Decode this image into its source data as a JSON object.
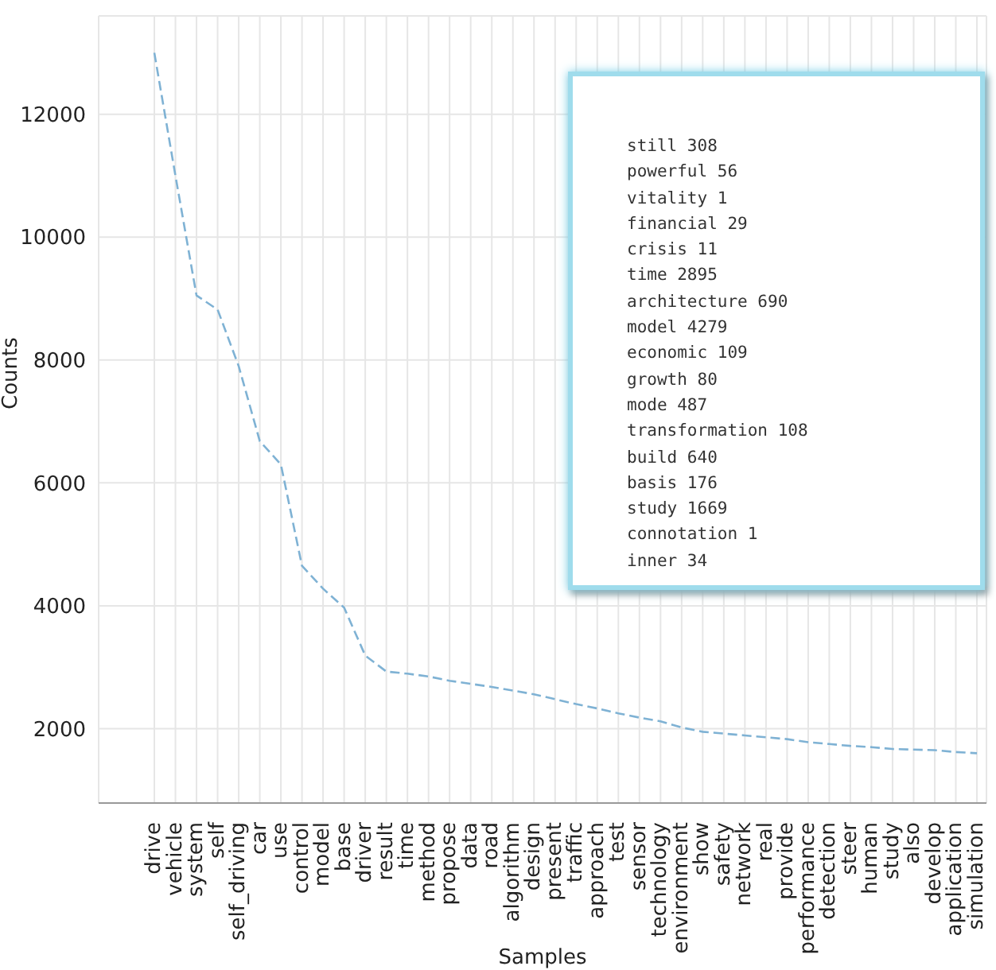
{
  "chart_data": {
    "type": "line",
    "xlabel": "Samples",
    "ylabel": "Counts",
    "categories": [
      "drive",
      "vehicle",
      "system",
      "self",
      "self_driving",
      "car",
      "use",
      "control",
      "model",
      "base",
      "driver",
      "result",
      "time",
      "method",
      "propose",
      "data",
      "road",
      "algorithm",
      "design",
      "present",
      "traffic",
      "approach",
      "test",
      "sensor",
      "technology",
      "environment",
      "show",
      "safety",
      "network",
      "real",
      "provide",
      "performance",
      "detection",
      "steer",
      "human",
      "study",
      "also",
      "develop",
      "application",
      "simulation"
    ],
    "series": [
      {
        "color": "#7fb2d4",
        "values": [
          13000,
          11000,
          9050,
          8820,
          7900,
          6680,
          6300,
          4650,
          4279,
          3970,
          3190,
          2930,
          2895,
          2850,
          2780,
          2730,
          2680,
          2620,
          2560,
          2480,
          2400,
          2330,
          2250,
          2180,
          2120,
          2020,
          1950,
          1920,
          1890,
          1860,
          1830,
          1780,
          1750,
          1720,
          1700,
          1669,
          1660,
          1650,
          1620,
          1600
        ]
      }
    ],
    "ylim": [
      790,
      13600
    ],
    "yticks": [
      2000,
      4000,
      6000,
      8000,
      10000,
      12000
    ],
    "grid": true,
    "line_style": "dashed",
    "marker": "none",
    "annotations": [
      "still 308",
      "powerful 56",
      "vitality 1",
      "financial 29",
      "crisis 11",
      "time 2895",
      "architecture 690",
      "model 4279",
      "economic 109",
      "growth 80",
      "mode 487",
      "transformation 108",
      "build 640",
      "basis 176",
      "study 1669",
      "connotation 1",
      "inner 34"
    ]
  }
}
